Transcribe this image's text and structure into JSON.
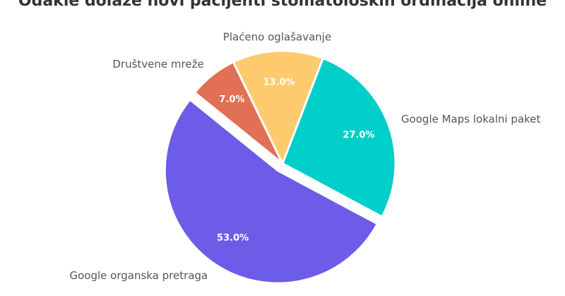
{
  "chart_data": {
    "type": "pie",
    "title": "Odakle dolaze novi pacijenti stomatoloških ordinacija online",
    "categories": [
      "Google Maps lokalni paket",
      "Google organska pretraga",
      "Društvene mreže",
      "Plaćeno oglašavanje"
    ],
    "values": [
      27,
      53,
      7,
      13
    ],
    "value_labels": [
      "27.0%",
      "53.0%",
      "7.0%",
      "13.0%"
    ],
    "colors": [
      "#00cec9",
      "#6c5ce7",
      "#e17055",
      "#fdcb6e"
    ]
  }
}
